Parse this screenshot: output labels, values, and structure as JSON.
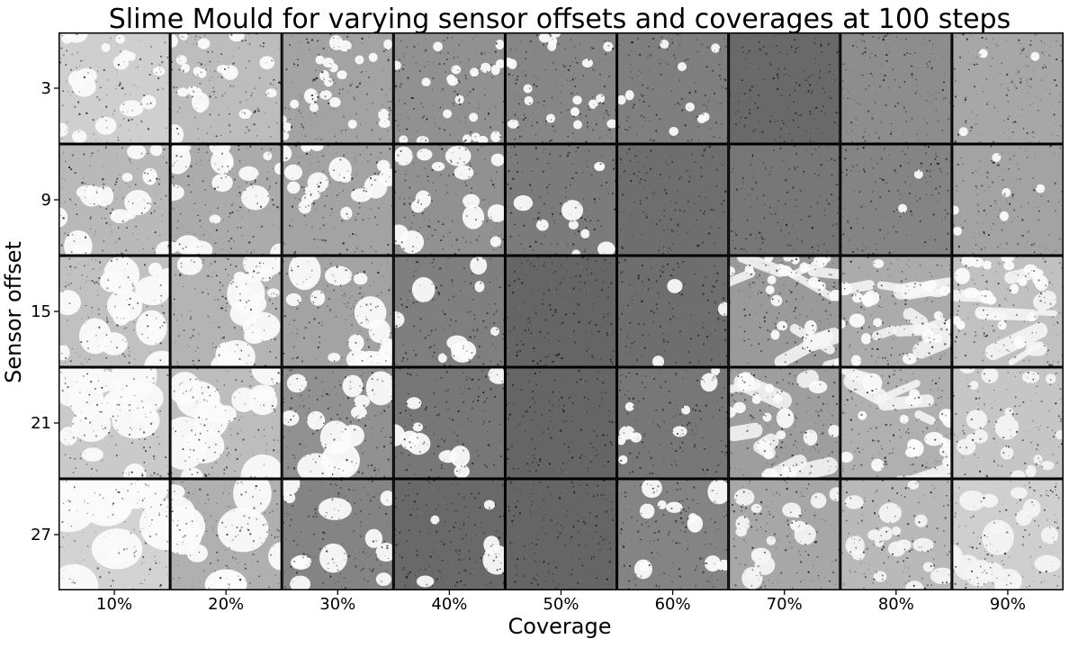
{
  "chart_data": {
    "type": "heatmap",
    "title": "Slime Mould for varying sensor offsets and coverages at 100 steps",
    "xlabel": "Coverage",
    "ylabel": "Sensor offset",
    "x": [
      "10%",
      "20%",
      "30%",
      "40%",
      "50%",
      "60%",
      "70%",
      "80%",
      "90%"
    ],
    "y": [
      3,
      9,
      15,
      21,
      27
    ],
    "grid": false,
    "cells": [
      [
        {
          "pattern": "thin-network",
          "darkness": 0.22,
          "hole_density": 0.7,
          "hole_size": 0.45
        },
        {
          "pattern": "thin-network",
          "darkness": 0.3,
          "hole_density": 0.9,
          "hole_size": 0.35
        },
        {
          "pattern": "cells",
          "darkness": 0.42,
          "hole_density": 1.1,
          "hole_size": 0.3
        },
        {
          "pattern": "cells",
          "darkness": 0.5,
          "hole_density": 1.0,
          "hole_size": 0.26
        },
        {
          "pattern": "cells",
          "darkness": 0.55,
          "hole_density": 0.9,
          "hole_size": 0.22
        },
        {
          "pattern": "sparse-holes",
          "darkness": 0.58,
          "hole_density": 0.45,
          "hole_size": 0.18
        },
        {
          "pattern": "noise",
          "darkness": 0.68,
          "hole_density": 0.0,
          "hole_size": 0.0
        },
        {
          "pattern": "noise",
          "darkness": 0.52,
          "hole_density": 0.0,
          "hole_size": 0.0
        },
        {
          "pattern": "noise",
          "darkness": 0.4,
          "hole_density": 0.1,
          "hole_size": 0.15
        }
      ],
      [
        {
          "pattern": "thick-network",
          "darkness": 0.32,
          "hole_density": 0.6,
          "hole_size": 0.6
        },
        {
          "pattern": "thick-network",
          "darkness": 0.38,
          "hole_density": 0.7,
          "hole_size": 0.55
        },
        {
          "pattern": "cells",
          "darkness": 0.42,
          "hole_density": 0.75,
          "hole_size": 0.5
        },
        {
          "pattern": "cells",
          "darkness": 0.5,
          "hole_density": 0.6,
          "hole_size": 0.48
        },
        {
          "pattern": "sparse-holes",
          "darkness": 0.6,
          "hole_density": 0.35,
          "hole_size": 0.4
        },
        {
          "pattern": "noise",
          "darkness": 0.66,
          "hole_density": 0.0,
          "hole_size": 0.0
        },
        {
          "pattern": "noise",
          "darkness": 0.62,
          "hole_density": 0.0,
          "hole_size": 0.0
        },
        {
          "pattern": "noise",
          "darkness": 0.56,
          "hole_density": 0.05,
          "hole_size": 0.2
        },
        {
          "pattern": "noise",
          "darkness": 0.42,
          "hole_density": 0.25,
          "hole_size": 0.22
        }
      ],
      [
        {
          "pattern": "thick-network",
          "darkness": 0.28,
          "hole_density": 0.55,
          "hole_size": 0.75
        },
        {
          "pattern": "thick-network",
          "darkness": 0.34,
          "hole_density": 0.55,
          "hole_size": 0.75
        },
        {
          "pattern": "thick-network",
          "darkness": 0.42,
          "hole_density": 0.6,
          "hole_size": 0.6
        },
        {
          "pattern": "sparse-holes",
          "darkness": 0.58,
          "hole_density": 0.35,
          "hole_size": 0.55
        },
        {
          "pattern": "noise",
          "darkness": 0.7,
          "hole_density": 0.0,
          "hole_size": 0.0
        },
        {
          "pattern": "noise",
          "darkness": 0.66,
          "hole_density": 0.05,
          "hole_size": 0.3
        },
        {
          "pattern": "stripes",
          "darkness": 0.46,
          "hole_density": 0.9,
          "hole_size": 0.3
        },
        {
          "pattern": "stripes",
          "darkness": 0.38,
          "hole_density": 1.0,
          "hole_size": 0.3
        },
        {
          "pattern": "stripes",
          "darkness": 0.28,
          "hole_density": 1.0,
          "hole_size": 0.32
        }
      ],
      [
        {
          "pattern": "thick-network",
          "darkness": 0.24,
          "hole_density": 0.4,
          "hole_size": 0.95
        },
        {
          "pattern": "thick-network",
          "darkness": 0.3,
          "hole_density": 0.45,
          "hole_size": 0.9
        },
        {
          "pattern": "sparse-holes",
          "darkness": 0.5,
          "hole_density": 0.4,
          "hole_size": 0.75
        },
        {
          "pattern": "sparse-holes",
          "darkness": 0.62,
          "hole_density": 0.3,
          "hole_size": 0.45
        },
        {
          "pattern": "noise",
          "darkness": 0.7,
          "hole_density": 0.0,
          "hole_size": 0.0
        },
        {
          "pattern": "sparse-holes",
          "darkness": 0.62,
          "hole_density": 0.35,
          "hole_size": 0.35
        },
        {
          "pattern": "stripes",
          "darkness": 0.44,
          "hole_density": 0.8,
          "hole_size": 0.35
        },
        {
          "pattern": "stripes",
          "darkness": 0.36,
          "hole_density": 0.85,
          "hole_size": 0.38
        },
        {
          "pattern": "blobs",
          "darkness": 0.26,
          "hole_density": 0.75,
          "hole_size": 0.45
        }
      ],
      [
        {
          "pattern": "thick-network",
          "darkness": 0.2,
          "hole_density": 0.3,
          "hole_size": 1.25
        },
        {
          "pattern": "thick-network",
          "darkness": 0.36,
          "hole_density": 0.35,
          "hole_size": 0.95
        },
        {
          "pattern": "sparse-holes",
          "darkness": 0.56,
          "hole_density": 0.35,
          "hole_size": 0.7
        },
        {
          "pattern": "noise",
          "darkness": 0.68,
          "hole_density": 0.06,
          "hole_size": 0.55
        },
        {
          "pattern": "noise",
          "darkness": 0.7,
          "hole_density": 0.0,
          "hole_size": 0.0
        },
        {
          "pattern": "sparse-holes",
          "darkness": 0.56,
          "hole_density": 0.45,
          "hole_size": 0.45
        },
        {
          "pattern": "blobs",
          "darkness": 0.4,
          "hole_density": 0.8,
          "hole_size": 0.42
        },
        {
          "pattern": "blobs",
          "darkness": 0.32,
          "hole_density": 0.75,
          "hole_size": 0.5
        },
        {
          "pattern": "blobs",
          "darkness": 0.22,
          "hole_density": 0.7,
          "hole_size": 0.6
        }
      ]
    ],
    "colors": {
      "background": "#ffffff",
      "border": "#000000",
      "light": "#f6f6f6",
      "dark": "#111111"
    }
  }
}
